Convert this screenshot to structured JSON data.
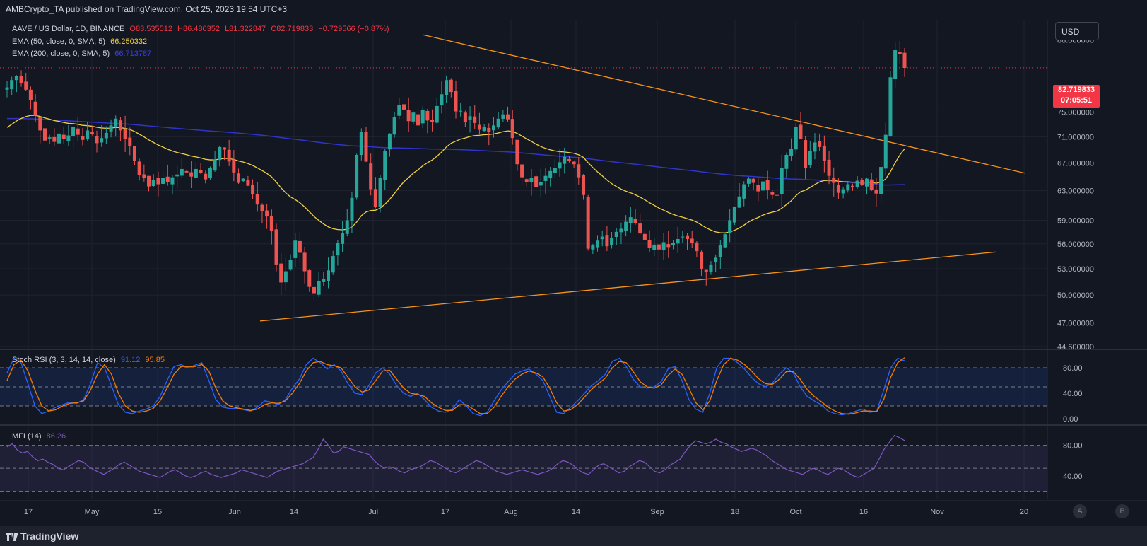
{
  "header": {
    "publisher_text": "AMBCrypto_TA published on TradingView.com, Oct 25, 2023 19:54 UTC+3"
  },
  "legend": {
    "symbol": "AAVE / US Dollar, 1D, BINANCE",
    "open": "O83.535512",
    "high": "H86.480352",
    "low": "L81.322847",
    "close": "C82.719833",
    "change": "−0.729566 (−0.87%)",
    "ema50_label": "EMA (50, close, 0, SMA, 5)",
    "ema50_value": "66.250332",
    "ema200_label": "EMA (200, close, 0, SMA, 5)",
    "ema200_value": "66.713787"
  },
  "currency_button": "USD",
  "last_price": {
    "price": "82.719833",
    "countdown": "07:05:51"
  },
  "price_axis_labels": [
    "88.000000",
    "75.000000",
    "71.000000",
    "67.000000",
    "63.000000",
    "59.000000",
    "56.000000",
    "53.000000",
    "50.000000",
    "47.000000",
    "44.600000"
  ],
  "stoch": {
    "label": "Stoch RSI (3, 3, 14, 14, close)",
    "k_value": "91.12",
    "d_value": "95.85",
    "axis_labels": [
      "80.00",
      "40.00",
      "0.00"
    ]
  },
  "mfi": {
    "label": "MFI (14)",
    "value": "86.26",
    "axis_labels": [
      "80.00",
      "40.00"
    ]
  },
  "time_axis_labels": [
    "17",
    "May",
    "15",
    "Jun",
    "14",
    "Jul",
    "17",
    "Aug",
    "14",
    "Sep",
    "18",
    "Oct",
    "16",
    "Nov",
    "20"
  ],
  "pane_buttons": [
    "A",
    "B"
  ],
  "footer": {
    "brand": "TradingView"
  },
  "colors": {
    "background": "#131722",
    "up": "#26a69a",
    "down": "#ef5350",
    "ema50": "#f0d040",
    "ema200": "#3034c8",
    "trendline": "#f7931a",
    "stoch_k": "#2962ff",
    "stoch_d": "#f57c00",
    "mfi": "#7e57c2",
    "last_price": "#f23645"
  },
  "chart_data": [
    {
      "type": "candlestick",
      "title": "AAVE / US Dollar, 1D, BINANCE",
      "ylim": [
        44.6,
        92
      ],
      "date_range": [
        "2023-04-11",
        "2023-10-25"
      ],
      "last_close": 82.72,
      "price_path_closes": [
        79.2,
        80.5,
        81.2,
        80.0,
        78.8,
        77.0,
        74.4,
        72.0,
        70.4,
        70.9,
        70.2,
        71.5,
        70.6,
        71.2,
        72.5,
        71.3,
        70.5,
        72.0,
        71.4,
        70.0,
        70.8,
        71.6,
        72.8,
        73.9,
        72.0,
        70.6,
        69.5,
        67.3,
        65.2,
        64.8,
        63.6,
        64.5,
        63.9,
        64.8,
        64.2,
        64.9,
        65.3,
        66.1,
        65.6,
        65.0,
        66.1,
        65.5,
        64.6,
        66.2,
        67.5,
        69.4,
        69.0,
        67.2,
        65.6,
        64.1,
        64.7,
        63.7,
        62.5,
        61.1,
        60.2,
        59.5,
        57.6,
        53.5,
        51.4,
        52.7,
        54.0,
        56.4,
        54.9,
        52.7,
        50.9,
        50.2,
        51.6,
        51.8,
        52.8,
        54.5,
        56.1,
        57.3,
        59.0,
        62.0,
        68.2,
        71.8,
        67.2,
        63.2,
        60.8,
        64.8,
        68.8,
        71.5,
        74.2,
        76.2,
        75.4,
        73.5,
        74.9,
        72.8,
        75.3,
        73.6,
        73.4,
        76.0,
        78.0,
        80.5,
        78.4,
        75.1,
        75.2,
        73.4,
        74.3,
        73.2,
        72.1,
        72.5,
        71.8,
        72.8,
        73.9,
        74.6,
        73.8,
        70.8,
        66.8,
        64.9,
        64.2,
        64.8,
        63.5,
        64.2,
        65.1,
        65.8,
        66.3,
        67.1,
        67.9,
        67.3,
        66.8,
        64.9,
        62.4,
        55.4,
        55.8,
        56.4,
        56.9,
        55.7,
        56.7,
        57.5,
        57.9,
        58.8,
        59.4,
        58.6,
        57.3,
        56.5,
        55.5,
        55.9,
        55.3,
        56.2,
        55.6,
        56.1,
        56.6,
        56.9,
        56.6,
        56.1,
        55.1,
        53.0,
        52.6,
        53.5,
        54.3,
        55.8,
        57.2,
        59.0,
        60.8,
        62.2,
        63.9,
        64.7,
        64.1,
        62.9,
        64.3,
        63.1,
        62.4,
        62.3,
        66.3,
        68.2,
        69.1,
        72.6,
        70.6,
        66.3,
        68.8,
        70.1,
        69.4,
        67.3,
        65.1,
        64.1,
        62.7,
        63.2,
        63.9,
        63.5,
        64.4,
        63.8,
        64.7,
        63.1,
        62.6,
        66.4,
        71.3,
        81.0,
        86.0,
        85.2,
        82.7
      ]
    },
    {
      "type": "line",
      "title": "Stoch RSI (3, 3, 14, 14, close)",
      "ylim": [
        0,
        100
      ],
      "series": [
        {
          "name": "91.12",
          "values": [
            72,
            95,
            88,
            55,
            20,
            8,
            12,
            18,
            22,
            26,
            24,
            30,
            55,
            88,
            80,
            52,
            22,
            10,
            8,
            12,
            15,
            20,
            35,
            60,
            82,
            85,
            80,
            84,
            88,
            60,
            30,
            18,
            16,
            16,
            14,
            12,
            18,
            28,
            26,
            22,
            30,
            48,
            62,
            85,
            95,
            88,
            78,
            85,
            75,
            55,
            40,
            38,
            52,
            72,
            80,
            70,
            52,
            40,
            35,
            40,
            30,
            18,
            12,
            10,
            15,
            30,
            20,
            8,
            5,
            10,
            28,
            45,
            58,
            70,
            75,
            78,
            70,
            60,
            35,
            10,
            8,
            18,
            28,
            40,
            52,
            60,
            70,
            90,
            95,
            82,
            62,
            50,
            48,
            50,
            58,
            78,
            82,
            60,
            30,
            15,
            10,
            40,
            80,
            95,
            95,
            88,
            78,
            65,
            55,
            50,
            56,
            70,
            80,
            72,
            50,
            35,
            28,
            22,
            12,
            8,
            6,
            8,
            12,
            15,
            10,
            12,
            45,
            80,
            95,
            91
          ]
        },
        {
          "name": "95.85",
          "values": [
            60,
            85,
            92,
            75,
            45,
            20,
            12,
            14,
            20,
            24,
            25,
            28,
            45,
            70,
            85,
            70,
            40,
            20,
            12,
            10,
            12,
            16,
            28,
            48,
            70,
            82,
            82,
            82,
            85,
            75,
            48,
            28,
            20,
            17,
            15,
            13,
            15,
            22,
            25,
            24,
            28,
            40,
            55,
            75,
            88,
            90,
            85,
            83,
            80,
            65,
            50,
            42,
            45,
            60,
            75,
            76,
            62,
            48,
            40,
            38,
            35,
            25,
            18,
            13,
            13,
            22,
            22,
            15,
            8,
            8,
            18,
            35,
            50,
            62,
            70,
            75,
            72,
            66,
            48,
            25,
            12,
            14,
            22,
            34,
            46,
            55,
            64,
            80,
            90,
            88,
            74,
            58,
            50,
            48,
            53,
            68,
            78,
            70,
            48,
            25,
            14,
            28,
            60,
            85,
            95,
            92,
            85,
            75,
            63,
            55,
            54,
            62,
            74,
            74,
            62,
            46,
            35,
            27,
            18,
            12,
            8,
            7,
            9,
            12,
            12,
            11,
            30,
            65,
            88,
            95.85
          ]
        }
      ]
    },
    {
      "type": "line",
      "title": "MFI (14)",
      "ylim": [
        15,
        100
      ],
      "series": [
        {
          "name": "86.26",
          "values": [
            78,
            82,
            74,
            70,
            72,
            65,
            60,
            62,
            58,
            55,
            50,
            48,
            52,
            56,
            60,
            58,
            52,
            48,
            45,
            42,
            46,
            50,
            55,
            58,
            54,
            50,
            46,
            44,
            42,
            40,
            38,
            42,
            46,
            48,
            44,
            40,
            38,
            40,
            44,
            46,
            42,
            40,
            38,
            40,
            42,
            44,
            48,
            46,
            44,
            42,
            40,
            38,
            42,
            46,
            48,
            50,
            52,
            54,
            56,
            60,
            64,
            75,
            88,
            80,
            70,
            72,
            78,
            76,
            74,
            72,
            70,
            68,
            60,
            54,
            50,
            52,
            50,
            46,
            44,
            48,
            50,
            52,
            56,
            60,
            58,
            54,
            50,
            46,
            44,
            48,
            52,
            56,
            60,
            58,
            54,
            50,
            46,
            44,
            42,
            44,
            46,
            48,
            46,
            44,
            42,
            44,
            46,
            50,
            56,
            60,
            58,
            54,
            48,
            44,
            42,
            48,
            54,
            56,
            52,
            48,
            44,
            46,
            52,
            56,
            60,
            58,
            52,
            46,
            44,
            48,
            54,
            58,
            62,
            72,
            80,
            86,
            84,
            82,
            84,
            88,
            84,
            82,
            78,
            75,
            72,
            74,
            76,
            74,
            70,
            66,
            60,
            56,
            52,
            48,
            46,
            44,
            42,
            46,
            50,
            48,
            44,
            42,
            46,
            50,
            48,
            44,
            40,
            38,
            42,
            46,
            50,
            62,
            75,
            84,
            93,
            90,
            86.26
          ]
        }
      ]
    }
  ]
}
